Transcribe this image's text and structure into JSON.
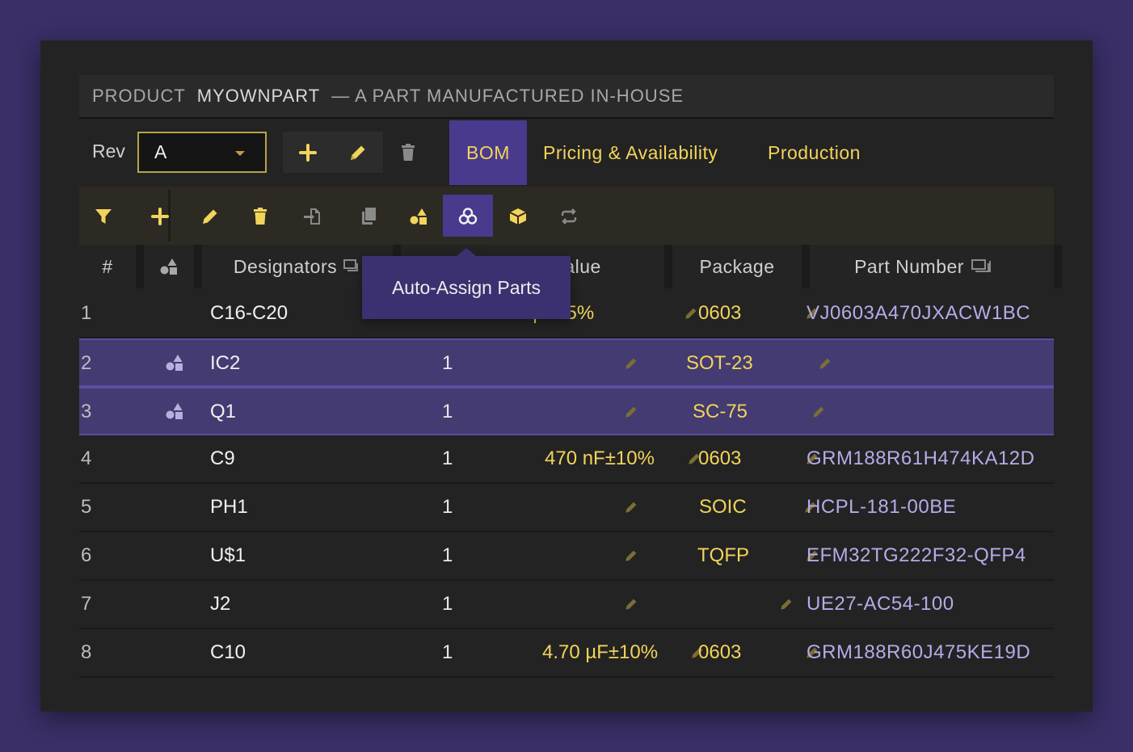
{
  "product": {
    "prefix": "PRODUCT",
    "name": "MYOWNPART",
    "description": "— A PART MANUFACTURED IN-HOUSE"
  },
  "revision": {
    "label": "Rev",
    "value": "A"
  },
  "tabs": [
    {
      "label": "BOM",
      "active": true
    },
    {
      "label": "Pricing & Availability",
      "active": false
    },
    {
      "label": "Production",
      "active": false
    }
  ],
  "toolbar": {
    "icons": [
      "filter-icon",
      "add-icon",
      "edit-icon",
      "delete-icon",
      "import-icon",
      "copy-icon",
      "shapes-icon",
      "auto-assign-icon",
      "package-icon",
      "swap-icon"
    ],
    "active": "auto-assign-icon",
    "tooltip": "Auto-Assign Parts"
  },
  "columns": {
    "number": "#",
    "designators": "Designators",
    "value": "Value",
    "package": "Package",
    "part_number": "Part Number"
  },
  "rows": [
    {
      "num": "1",
      "designators": "C16-C20",
      "qty": "1",
      "value": "47 pF±5%",
      "package": "0603",
      "part_number": "VJ0603A470JXACW1BC",
      "assigned_icon": false,
      "selected": false
    },
    {
      "num": "2",
      "designators": "IC2",
      "qty": "1",
      "value": "",
      "package": "SOT-23",
      "part_number": "",
      "assigned_icon": true,
      "selected": true
    },
    {
      "num": "3",
      "designators": "Q1",
      "qty": "1",
      "value": "",
      "package": "SC-75",
      "part_number": "",
      "assigned_icon": true,
      "selected": true
    },
    {
      "num": "4",
      "designators": "C9",
      "qty": "1",
      "value": "470 nF±10%",
      "package": "0603",
      "part_number": "GRM188R61H474KA12D",
      "assigned_icon": false,
      "selected": false
    },
    {
      "num": "5",
      "designators": "PH1",
      "qty": "1",
      "value": "",
      "package": "SOIC",
      "part_number": "HCPL-181-00BE",
      "assigned_icon": false,
      "selected": false
    },
    {
      "num": "6",
      "designators": "U$1",
      "qty": "1",
      "value": "",
      "package": "TQFP",
      "part_number": "EFM32TG222F32-QFP4",
      "assigned_icon": false,
      "selected": false
    },
    {
      "num": "7",
      "designators": "J2",
      "qty": "1",
      "value": "",
      "package": "",
      "part_number": "UE27-AC54-100",
      "assigned_icon": false,
      "selected": false
    },
    {
      "num": "8",
      "designators": "C10",
      "qty": "1",
      "value": "4.70 µF±10%",
      "package": "0603",
      "part_number": "GRM188R60J475KE19D",
      "assigned_icon": false,
      "selected": false
    }
  ],
  "colors": {
    "accent": "#4a3a8e",
    "highlight_text": "#f2d45a",
    "part_number_text": "#b7aae8",
    "background": "#3a2f67"
  }
}
